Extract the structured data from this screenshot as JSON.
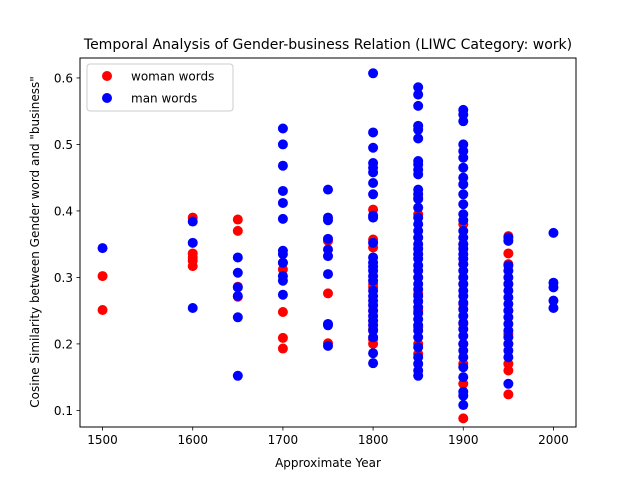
{
  "chart_data": {
    "type": "scatter",
    "title": "Temporal Analysis of Gender-business Relation (LIWC Category: work)",
    "xlabel": "Approximate Year",
    "ylabel": "Cosine Similarity between Gender word and \"business\"",
    "xlim": [
      1475,
      2025
    ],
    "ylim": [
      0.075,
      0.63
    ],
    "xticks": [
      1500,
      1600,
      1700,
      1800,
      1900,
      2000
    ],
    "yticks": [
      0.1,
      0.2,
      0.3,
      0.4,
      0.5,
      0.6
    ],
    "grid": false,
    "legend": "top-left",
    "series": [
      {
        "name": "woman words",
        "color": "#ff0000",
        "points": [
          [
            1500,
            0.302
          ],
          [
            1500,
            0.251
          ],
          [
            1600,
            0.39
          ],
          [
            1600,
            0.336
          ],
          [
            1600,
            0.33
          ],
          [
            1600,
            0.325
          ],
          [
            1600,
            0.317
          ],
          [
            1650,
            0.387
          ],
          [
            1650,
            0.37
          ],
          [
            1650,
            0.286
          ],
          [
            1650,
            0.271
          ],
          [
            1700,
            0.322
          ],
          [
            1700,
            0.312
          ],
          [
            1700,
            0.248
          ],
          [
            1700,
            0.209
          ],
          [
            1700,
            0.193
          ],
          [
            1750,
            0.355
          ],
          [
            1750,
            0.276
          ],
          [
            1750,
            0.201
          ],
          [
            1800,
            0.402
          ],
          [
            1800,
            0.357
          ],
          [
            1800,
            0.345
          ],
          [
            1800,
            0.29
          ],
          [
            1800,
            0.285
          ],
          [
            1800,
            0.25
          ],
          [
            1800,
            0.235
          ],
          [
            1800,
            0.222
          ],
          [
            1800,
            0.207
          ],
          [
            1800,
            0.2
          ],
          [
            1850,
            0.42
          ],
          [
            1850,
            0.395
          ],
          [
            1850,
            0.36
          ],
          [
            1850,
            0.335
          ],
          [
            1850,
            0.3
          ],
          [
            1850,
            0.275
          ],
          [
            1850,
            0.25
          ],
          [
            1850,
            0.225
          ],
          [
            1850,
            0.2
          ],
          [
            1850,
            0.185
          ],
          [
            1900,
            0.38
          ],
          [
            1900,
            0.35
          ],
          [
            1900,
            0.32
          ],
          [
            1900,
            0.29
          ],
          [
            1900,
            0.26
          ],
          [
            1900,
            0.23
          ],
          [
            1900,
            0.2
          ],
          [
            1900,
            0.17
          ],
          [
            1900,
            0.14
          ],
          [
            1900,
            0.088
          ],
          [
            1950,
            0.362
          ],
          [
            1950,
            0.336
          ],
          [
            1950,
            0.32
          ],
          [
            1950,
            0.29
          ],
          [
            1950,
            0.25
          ],
          [
            1950,
            0.215
          ],
          [
            1950,
            0.2
          ],
          [
            1950,
            0.17
          ],
          [
            1950,
            0.16
          ],
          [
            1950,
            0.124
          ]
        ]
      },
      {
        "name": "man words",
        "color": "#0000ff",
        "points": [
          [
            1500,
            0.344
          ],
          [
            1600,
            0.384
          ],
          [
            1600,
            0.352
          ],
          [
            1600,
            0.254
          ],
          [
            1650,
            0.33
          ],
          [
            1650,
            0.307
          ],
          [
            1650,
            0.285
          ],
          [
            1650,
            0.272
          ],
          [
            1650,
            0.24
          ],
          [
            1650,
            0.152
          ],
          [
            1700,
            0.524
          ],
          [
            1700,
            0.5
          ],
          [
            1700,
            0.468
          ],
          [
            1700,
            0.43
          ],
          [
            1700,
            0.412
          ],
          [
            1700,
            0.388
          ],
          [
            1700,
            0.34
          ],
          [
            1700,
            0.335
          ],
          [
            1700,
            0.322
          ],
          [
            1700,
            0.302
          ],
          [
            1700,
            0.295
          ],
          [
            1700,
            0.274
          ],
          [
            1750,
            0.432
          ],
          [
            1750,
            0.39
          ],
          [
            1750,
            0.386
          ],
          [
            1750,
            0.358
          ],
          [
            1750,
            0.342
          ],
          [
            1750,
            0.332
          ],
          [
            1750,
            0.305
          ],
          [
            1750,
            0.23
          ],
          [
            1750,
            0.228
          ],
          [
            1750,
            0.197
          ],
          [
            1800,
            0.607
          ],
          [
            1800,
            0.518
          ],
          [
            1800,
            0.495
          ],
          [
            1800,
            0.472
          ],
          [
            1800,
            0.465
          ],
          [
            1800,
            0.458
          ],
          [
            1800,
            0.442
          ],
          [
            1800,
            0.425
          ],
          [
            1800,
            0.393
          ],
          [
            1800,
            0.39
          ],
          [
            1800,
            0.352
          ],
          [
            1800,
            0.33
          ],
          [
            1800,
            0.322
          ],
          [
            1800,
            0.316
          ],
          [
            1800,
            0.31
          ],
          [
            1800,
            0.302
          ],
          [
            1800,
            0.295
          ],
          [
            1800,
            0.28
          ],
          [
            1800,
            0.272
          ],
          [
            1800,
            0.265
          ],
          [
            1800,
            0.258
          ],
          [
            1800,
            0.25
          ],
          [
            1800,
            0.242
          ],
          [
            1800,
            0.235
          ],
          [
            1800,
            0.228
          ],
          [
            1800,
            0.22
          ],
          [
            1800,
            0.21
          ],
          [
            1800,
            0.186
          ],
          [
            1800,
            0.171
          ],
          [
            1850,
            0.586
          ],
          [
            1850,
            0.575
          ],
          [
            1850,
            0.558
          ],
          [
            1850,
            0.528
          ],
          [
            1850,
            0.522
          ],
          [
            1850,
            0.509
          ],
          [
            1850,
            0.475
          ],
          [
            1850,
            0.47
          ],
          [
            1850,
            0.462
          ],
          [
            1850,
            0.455
          ],
          [
            1850,
            0.432
          ],
          [
            1850,
            0.425
          ],
          [
            1850,
            0.418
          ],
          [
            1850,
            0.405
          ],
          [
            1850,
            0.39
          ],
          [
            1850,
            0.38
          ],
          [
            1850,
            0.37
          ],
          [
            1850,
            0.36
          ],
          [
            1850,
            0.35
          ],
          [
            1850,
            0.343
          ],
          [
            1850,
            0.335
          ],
          [
            1850,
            0.328
          ],
          [
            1850,
            0.318
          ],
          [
            1850,
            0.31
          ],
          [
            1850,
            0.3
          ],
          [
            1850,
            0.29
          ],
          [
            1850,
            0.282
          ],
          [
            1850,
            0.272
          ],
          [
            1850,
            0.264
          ],
          [
            1850,
            0.255
          ],
          [
            1850,
            0.246
          ],
          [
            1850,
            0.237
          ],
          [
            1850,
            0.228
          ],
          [
            1850,
            0.22
          ],
          [
            1850,
            0.21
          ],
          [
            1850,
            0.195
          ],
          [
            1850,
            0.18
          ],
          [
            1850,
            0.17
          ],
          [
            1850,
            0.16
          ],
          [
            1850,
            0.152
          ],
          [
            1900,
            0.552
          ],
          [
            1900,
            0.545
          ],
          [
            1900,
            0.535
          ],
          [
            1900,
            0.5
          ],
          [
            1900,
            0.49
          ],
          [
            1900,
            0.48
          ],
          [
            1900,
            0.465
          ],
          [
            1900,
            0.45
          ],
          [
            1900,
            0.44
          ],
          [
            1900,
            0.425
          ],
          [
            1900,
            0.41
          ],
          [
            1900,
            0.395
          ],
          [
            1900,
            0.386
          ],
          [
            1900,
            0.37
          ],
          [
            1900,
            0.36
          ],
          [
            1900,
            0.35
          ],
          [
            1900,
            0.343
          ],
          [
            1900,
            0.335
          ],
          [
            1900,
            0.328
          ],
          [
            1900,
            0.32
          ],
          [
            1900,
            0.31
          ],
          [
            1900,
            0.3
          ],
          [
            1900,
            0.29
          ],
          [
            1900,
            0.28
          ],
          [
            1900,
            0.272
          ],
          [
            1900,
            0.262
          ],
          [
            1900,
            0.252
          ],
          [
            1900,
            0.242
          ],
          [
            1900,
            0.232
          ],
          [
            1900,
            0.222
          ],
          [
            1900,
            0.212
          ],
          [
            1900,
            0.2
          ],
          [
            1900,
            0.19
          ],
          [
            1900,
            0.18
          ],
          [
            1900,
            0.165
          ],
          [
            1900,
            0.15
          ],
          [
            1900,
            0.128
          ],
          [
            1900,
            0.122
          ],
          [
            1900,
            0.108
          ],
          [
            1950,
            0.36
          ],
          [
            1950,
            0.355
          ],
          [
            1950,
            0.318
          ],
          [
            1950,
            0.31
          ],
          [
            1950,
            0.3
          ],
          [
            1950,
            0.29
          ],
          [
            1950,
            0.28
          ],
          [
            1950,
            0.27
          ],
          [
            1950,
            0.26
          ],
          [
            1950,
            0.25
          ],
          [
            1950,
            0.24
          ],
          [
            1950,
            0.23
          ],
          [
            1950,
            0.22
          ],
          [
            1950,
            0.21
          ],
          [
            1950,
            0.2
          ],
          [
            1950,
            0.19
          ],
          [
            1950,
            0.18
          ],
          [
            1950,
            0.14
          ],
          [
            2000,
            0.367
          ],
          [
            2000,
            0.292
          ],
          [
            2000,
            0.285
          ],
          [
            2000,
            0.265
          ],
          [
            2000,
            0.254
          ]
        ]
      }
    ]
  }
}
